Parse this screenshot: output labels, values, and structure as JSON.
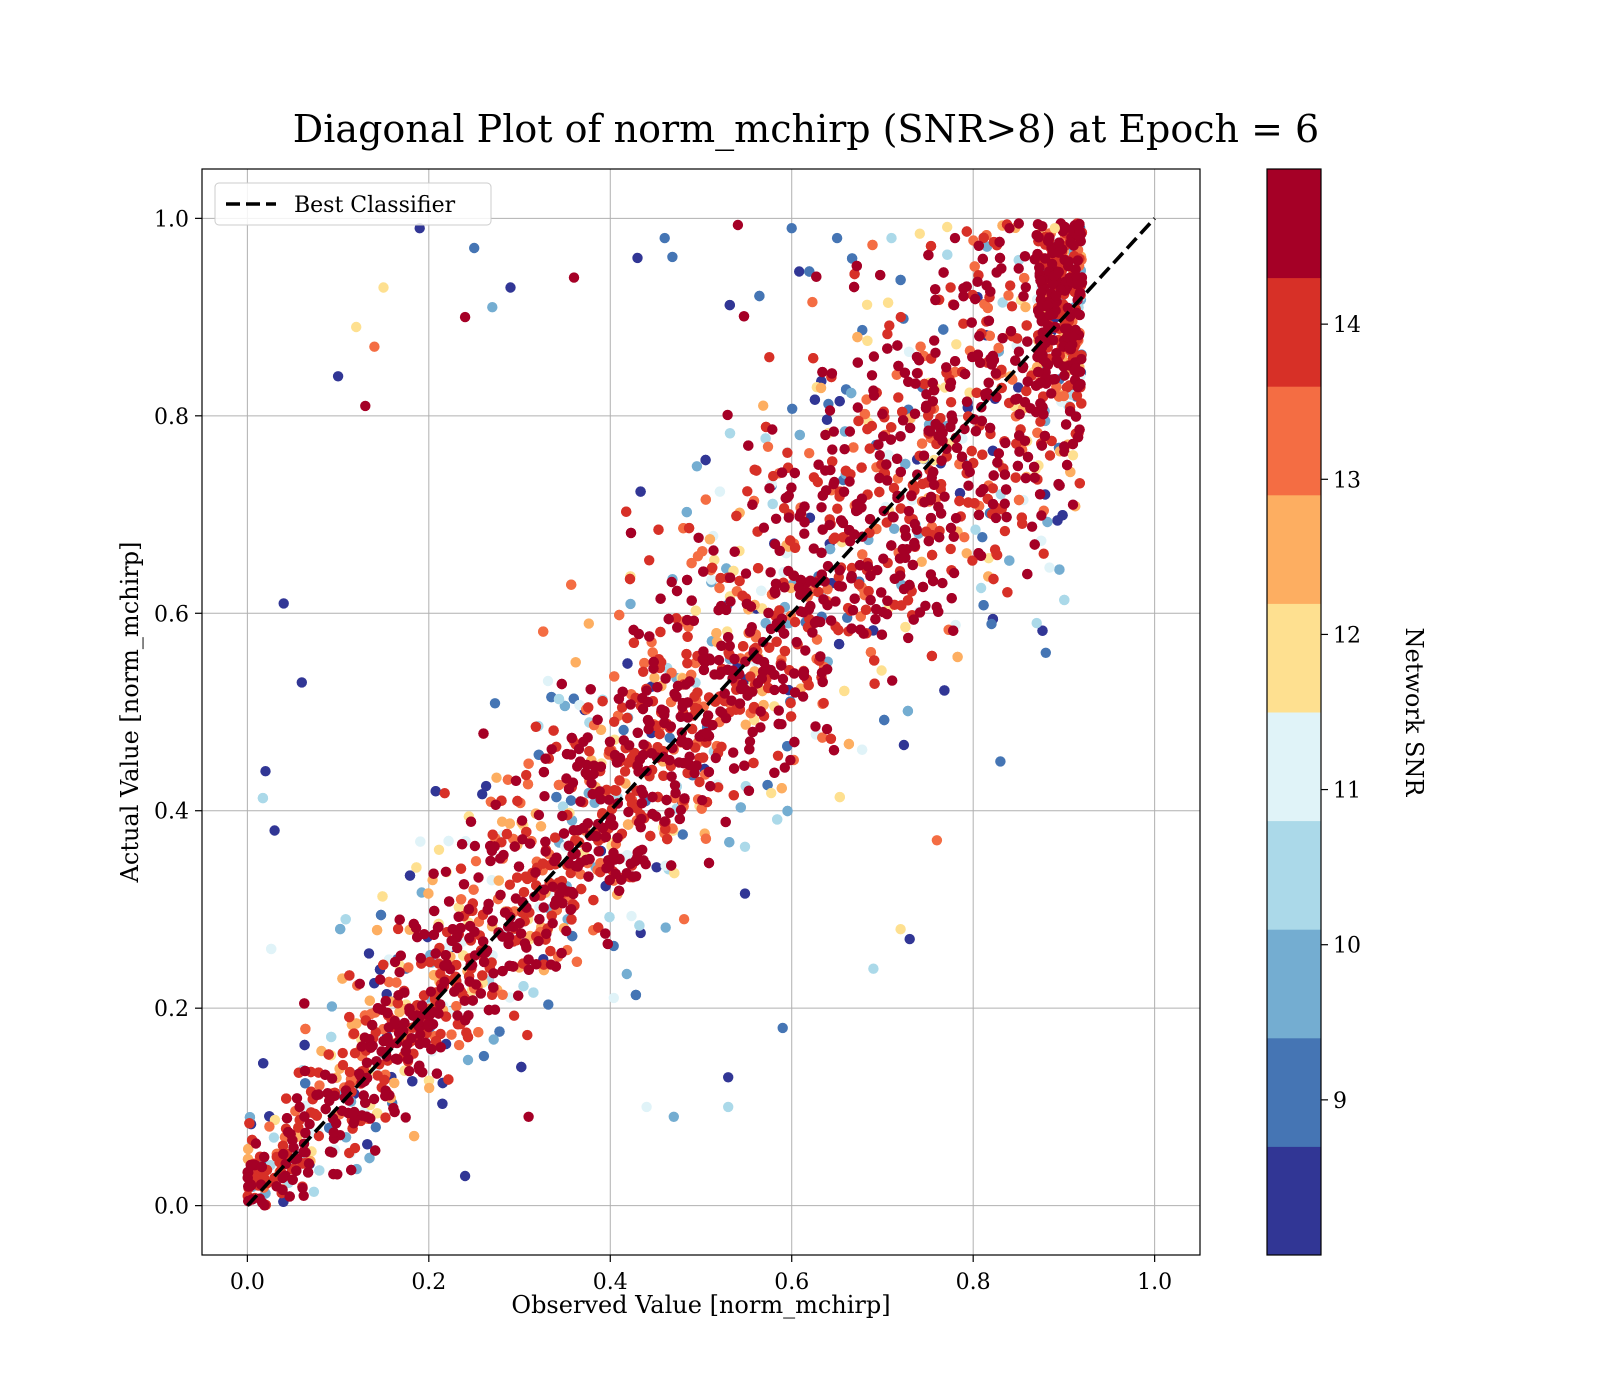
{
  "chart_data": {
    "type": "scatter",
    "title": "Diagonal Plot of norm_mchirp (SNR>8) at Epoch = 6",
    "xlabel": "Observed Value [norm_mchirp]",
    "ylabel": "Actual Value [norm_mchirp]",
    "xlim": [
      -0.05,
      1.05
    ],
    "ylim": [
      -0.05,
      1.05
    ],
    "xticks": [
      "0.0",
      "0.2",
      "0.4",
      "0.6",
      "0.8",
      "1.0"
    ],
    "yticks": [
      "0.0",
      "0.2",
      "0.4",
      "0.6",
      "0.8",
      "1.0"
    ],
    "grid": true,
    "legend": {
      "placement": "upper-left",
      "entries": [
        {
          "label": "Best Classifier",
          "style": "dashed",
          "color": "#000000"
        }
      ]
    },
    "reference_line": {
      "name": "Best Classifier",
      "x": [
        0.0,
        1.0
      ],
      "y": [
        0.0,
        1.0
      ]
    },
    "colorbar": {
      "label": "Network SNR",
      "range": [
        8,
        15
      ],
      "ticks": [
        "9",
        "10",
        "11",
        "12",
        "13",
        "14"
      ],
      "colors": [
        "#313695",
        "#4575b4",
        "#74add1",
        "#abd9e9",
        "#e0f3f8",
        "#fee090",
        "#fdae61",
        "#f46d43",
        "#d73027",
        "#a50026"
      ]
    },
    "series": [
      {
        "color_by": "Network SNR",
        "points": [
          {
            "x": 0.19,
            "y": 0.99,
            "snr": 8.3
          },
          {
            "x": 0.25,
            "y": 0.97,
            "snr": 9.1
          },
          {
            "x": 0.12,
            "y": 0.89,
            "snr": 11.7
          },
          {
            "x": 0.15,
            "y": 0.93,
            "snr": 12.1
          },
          {
            "x": 0.14,
            "y": 0.87,
            "snr": 13.6
          },
          {
            "x": 0.1,
            "y": 0.84,
            "snr": 8.4
          },
          {
            "x": 0.13,
            "y": 0.81,
            "snr": 14.6
          },
          {
            "x": 0.04,
            "y": 0.61,
            "snr": 8.2
          },
          {
            "x": 0.06,
            "y": 0.53,
            "snr": 8.3
          },
          {
            "x": 0.02,
            "y": 0.44,
            "snr": 8.4
          },
          {
            "x": 0.03,
            "y": 0.38,
            "snr": 8.2
          },
          {
            "x": 0.24,
            "y": 0.03,
            "snr": 8.3
          },
          {
            "x": 0.31,
            "y": 0.09,
            "snr": 14.8
          },
          {
            "x": 0.44,
            "y": 0.1,
            "snr": 11.3
          },
          {
            "x": 0.47,
            "y": 0.09,
            "snr": 10.1
          },
          {
            "x": 0.53,
            "y": 0.13,
            "snr": 8.3
          },
          {
            "x": 0.53,
            "y": 0.1,
            "snr": 10.6
          },
          {
            "x": 0.59,
            "y": 0.18,
            "snr": 9.1
          },
          {
            "x": 0.69,
            "y": 0.24,
            "snr": 10.7
          },
          {
            "x": 0.73,
            "y": 0.27,
            "snr": 8.4
          },
          {
            "x": 0.72,
            "y": 0.28,
            "snr": 12.1
          },
          {
            "x": 0.76,
            "y": 0.37,
            "snr": 13.3
          },
          {
            "x": 0.83,
            "y": 0.45,
            "snr": 9.2
          },
          {
            "x": 0.88,
            "y": 0.56,
            "snr": 9.3
          },
          {
            "x": 0.87,
            "y": 0.59,
            "snr": 10.6
          },
          {
            "x": 0.91,
            "y": 0.71,
            "snr": 14.6
          },
          {
            "x": 0.91,
            "y": 0.76,
            "snr": 12.1
          },
          {
            "x": 0.9,
            "y": 0.82,
            "snr": 13.6
          },
          {
            "x": 0.91,
            "y": 0.88,
            "snr": 14.7
          },
          {
            "x": 0.43,
            "y": 0.96,
            "snr": 8.4
          },
          {
            "x": 0.46,
            "y": 0.98,
            "snr": 9.2
          },
          {
            "x": 0.36,
            "y": 0.94,
            "snr": 14.6
          },
          {
            "x": 0.29,
            "y": 0.93,
            "snr": 8.3
          },
          {
            "x": 0.24,
            "y": 0.9,
            "snr": 14.7
          },
          {
            "x": 0.27,
            "y": 0.91,
            "snr": 10.1
          },
          {
            "x": 0.78,
            "y": 0.98,
            "snr": 14.7
          },
          {
            "x": 0.84,
            "y": 0.99,
            "snr": 14.6
          },
          {
            "x": 0.89,
            "y": 0.99,
            "snr": 12.1
          },
          {
            "x": 0.71,
            "y": 0.98,
            "snr": 10.7
          },
          {
            "x": 0.65,
            "y": 0.98,
            "snr": 9.2
          },
          {
            "x": 0.6,
            "y": 0.99,
            "snr": 9.3
          }
        ]
      }
    ]
  }
}
